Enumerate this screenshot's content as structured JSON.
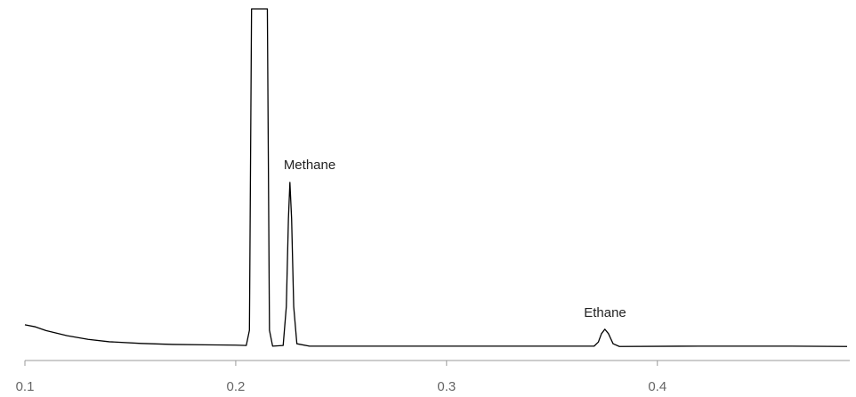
{
  "chart_data": {
    "type": "line",
    "x": [
      0.1,
      0.105,
      0.11,
      0.12,
      0.13,
      0.14,
      0.155,
      0.17,
      0.185,
      0.2,
      0.205,
      0.2065,
      0.2075,
      0.215,
      0.216,
      0.2175,
      0.2225,
      0.224,
      0.225,
      0.2257,
      0.2265,
      0.2275,
      0.229,
      0.235,
      0.27,
      0.32,
      0.37,
      0.372,
      0.3735,
      0.3751,
      0.3768,
      0.379,
      0.382,
      0.42,
      0.46,
      0.49
    ],
    "values": [
      6.6,
      6.0,
      4.9,
      3.4,
      2.3,
      1.6,
      1.1,
      0.8,
      0.7,
      0.6,
      0.5,
      5,
      100,
      100,
      5,
      0.3,
      0.5,
      12,
      38,
      48.7,
      38,
      12,
      1,
      0.3,
      0.3,
      0.3,
      0.3,
      1.5,
      4,
      5.3,
      4,
      1,
      0.2,
      0.3,
      0.3,
      0.2
    ],
    "color": "#000000",
    "xlim": [
      0.1,
      0.49
    ],
    "ylim": [
      0,
      100
    ],
    "xticks": [
      0.1,
      0.2,
      0.3,
      0.4
    ],
    "annotations": [
      "Methane",
      "Ethane"
    ]
  }
}
